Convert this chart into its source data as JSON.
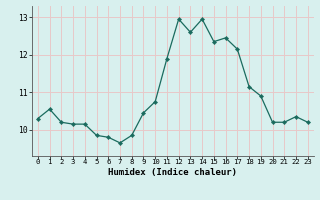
{
  "x": [
    0,
    1,
    2,
    3,
    4,
    5,
    6,
    7,
    8,
    9,
    10,
    11,
    12,
    13,
    14,
    15,
    16,
    17,
    18,
    19,
    20,
    21,
    22,
    23
  ],
  "y": [
    10.3,
    10.55,
    10.2,
    10.15,
    10.15,
    9.85,
    9.8,
    9.65,
    9.85,
    10.45,
    10.75,
    11.9,
    12.95,
    12.6,
    12.95,
    12.35,
    12.45,
    12.15,
    11.15,
    10.9,
    10.2,
    10.2,
    10.35,
    10.2
  ],
  "line_color": "#1a6b5e",
  "marker": "D",
  "marker_size": 2.2,
  "bg_color": "#d8f0ee",
  "grid_color_h": "#e8c8c8",
  "grid_color_v": "#e8c8c8",
  "xlabel": "Humidex (Indice chaleur)",
  "xlim": [
    -0.5,
    23.5
  ],
  "ylim": [
    9.3,
    13.3
  ],
  "yticks": [
    10,
    11,
    12,
    13
  ],
  "xticks": [
    0,
    1,
    2,
    3,
    4,
    5,
    6,
    7,
    8,
    9,
    10,
    11,
    12,
    13,
    14,
    15,
    16,
    17,
    18,
    19,
    20,
    21,
    22,
    23
  ],
  "figsize": [
    3.2,
    2.0
  ],
  "dpi": 100
}
